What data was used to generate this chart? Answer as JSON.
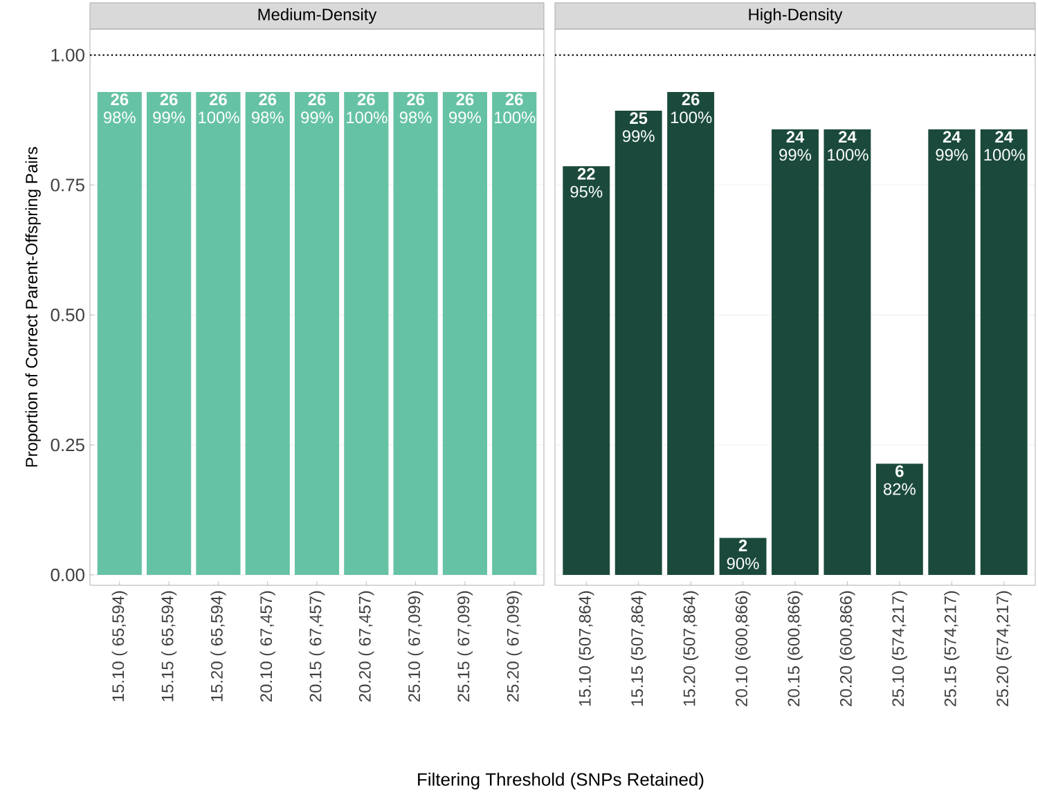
{
  "chart_data": [
    {
      "type": "bar",
      "title": "Medium-Density",
      "xlabel": "Filtering Threshold (SNPs Retained)",
      "ylabel": "Proportion of Correct Parent-Offspring Pairs",
      "categories": [
        "15.10 ( 65,594)",
        "15.15 ( 65,594)",
        "15.20 ( 65,594)",
        "20.10 ( 67,457)",
        "20.15 ( 67,457)",
        "20.20 ( 67,457)",
        "25.10 ( 67,099)",
        "25.15 ( 67,099)",
        "25.20 ( 67,099)"
      ],
      "values": [
        0.929,
        0.929,
        0.929,
        0.929,
        0.929,
        0.929,
        0.929,
        0.929,
        0.929
      ],
      "annotations": [
        {
          "text": "**26** 98%",
          "x": "15.10 ( 65,594)",
          "y": 0.929
        },
        {
          "text": "**26** 99%",
          "x": "15.15 ( 65,594)",
          "y": 0.929
        },
        {
          "text": "**26** 100%",
          "x": "15.20 ( 65,594)",
          "y": 0.929
        },
        {
          "text": "**26** 98%",
          "x": "20.10 ( 67,457)",
          "y": 0.929
        },
        {
          "text": "**26** 99%",
          "x": "20.15 ( 67,457)",
          "y": 0.929
        },
        {
          "text": "**26** 100%",
          "x": "20.20 ( 67,457)",
          "y": 0.929
        },
        {
          "text": "**26** 98%",
          "x": "25.10 ( 67,099)",
          "y": 0.929
        },
        {
          "text": "**26** 99%",
          "x": "25.15 ( 67,099)",
          "y": 0.929
        },
        {
          "text": "**26** 100%",
          "x": "25.20 ( 67,099)",
          "y": 0.929
        }
      ],
      "color": "#66c2a5",
      "ylim": [
        -0.02,
        1.05
      ],
      "yticks": [
        {
          "value": 0,
          "label": "0.00"
        },
        {
          "value": 0.25,
          "label": "0.25"
        },
        {
          "value": 0.5,
          "label": "0.50"
        },
        {
          "value": 0.75,
          "label": "0.75"
        },
        {
          "value": 1,
          "label": "1.00"
        }
      ],
      "grid": "y",
      "ref_lines": [
        {
          "axis": "y",
          "value": 1,
          "color": "#000000",
          "line_style": "dotted"
        }
      ]
    },
    {
      "type": "bar",
      "title": "High-Density",
      "categories": [
        "15.10 (507,864)",
        "15.15 (507,864)",
        "15.20 (507,864)",
        "20.10 (600,866)",
        "20.15 (600,866)",
        "20.20 (600,866)",
        "25.10 (574,217)",
        "25.15 (574,217)",
        "25.20 (574,217)"
      ],
      "values": [
        0.786,
        0.893,
        0.929,
        0.071,
        0.857,
        0.857,
        0.214,
        0.857,
        0.857
      ],
      "annotations": [
        {
          "text": "**22** 95%",
          "x": "15.10 (507,864)",
          "y": 0.786
        },
        {
          "text": "**25** 99%",
          "x": "15.15 (507,864)",
          "y": 0.893
        },
        {
          "text": "**26** 100%",
          "x": "15.20 (507,864)",
          "y": 0.929
        },
        {
          "text": "**2** 90%",
          "x": "20.10 (600,866)",
          "y": 0.071
        },
        {
          "text": "**24** 99%",
          "x": "20.15 (600,866)",
          "y": 0.857
        },
        {
          "text": "**24** 100%",
          "x": "20.20 (600,866)",
          "y": 0.857
        },
        {
          "text": "**6** 82%",
          "x": "25.10 (574,217)",
          "y": 0.214
        },
        {
          "text": "**24** 99%",
          "x": "25.15 (574,217)",
          "y": 0.857
        },
        {
          "text": "**24** 100%",
          "x": "25.20 (574,217)",
          "y": 0.857
        }
      ],
      "color": "#1b4a3c",
      "ylim": [
        -0.02,
        1.05
      ],
      "yticks": [
        {
          "value": 0,
          "label": null
        },
        {
          "value": 0.25,
          "label": null
        },
        {
          "value": 0.5,
          "label": null
        },
        {
          "value": 0.75,
          "label": null
        },
        {
          "value": 1,
          "label": null
        }
      ],
      "grid": "y",
      "tick_labels": "x",
      "ref_lines": [
        {
          "axis": "y",
          "value": 1,
          "color": "#000000",
          "line_style": "dotted"
        }
      ]
    }
  ]
}
